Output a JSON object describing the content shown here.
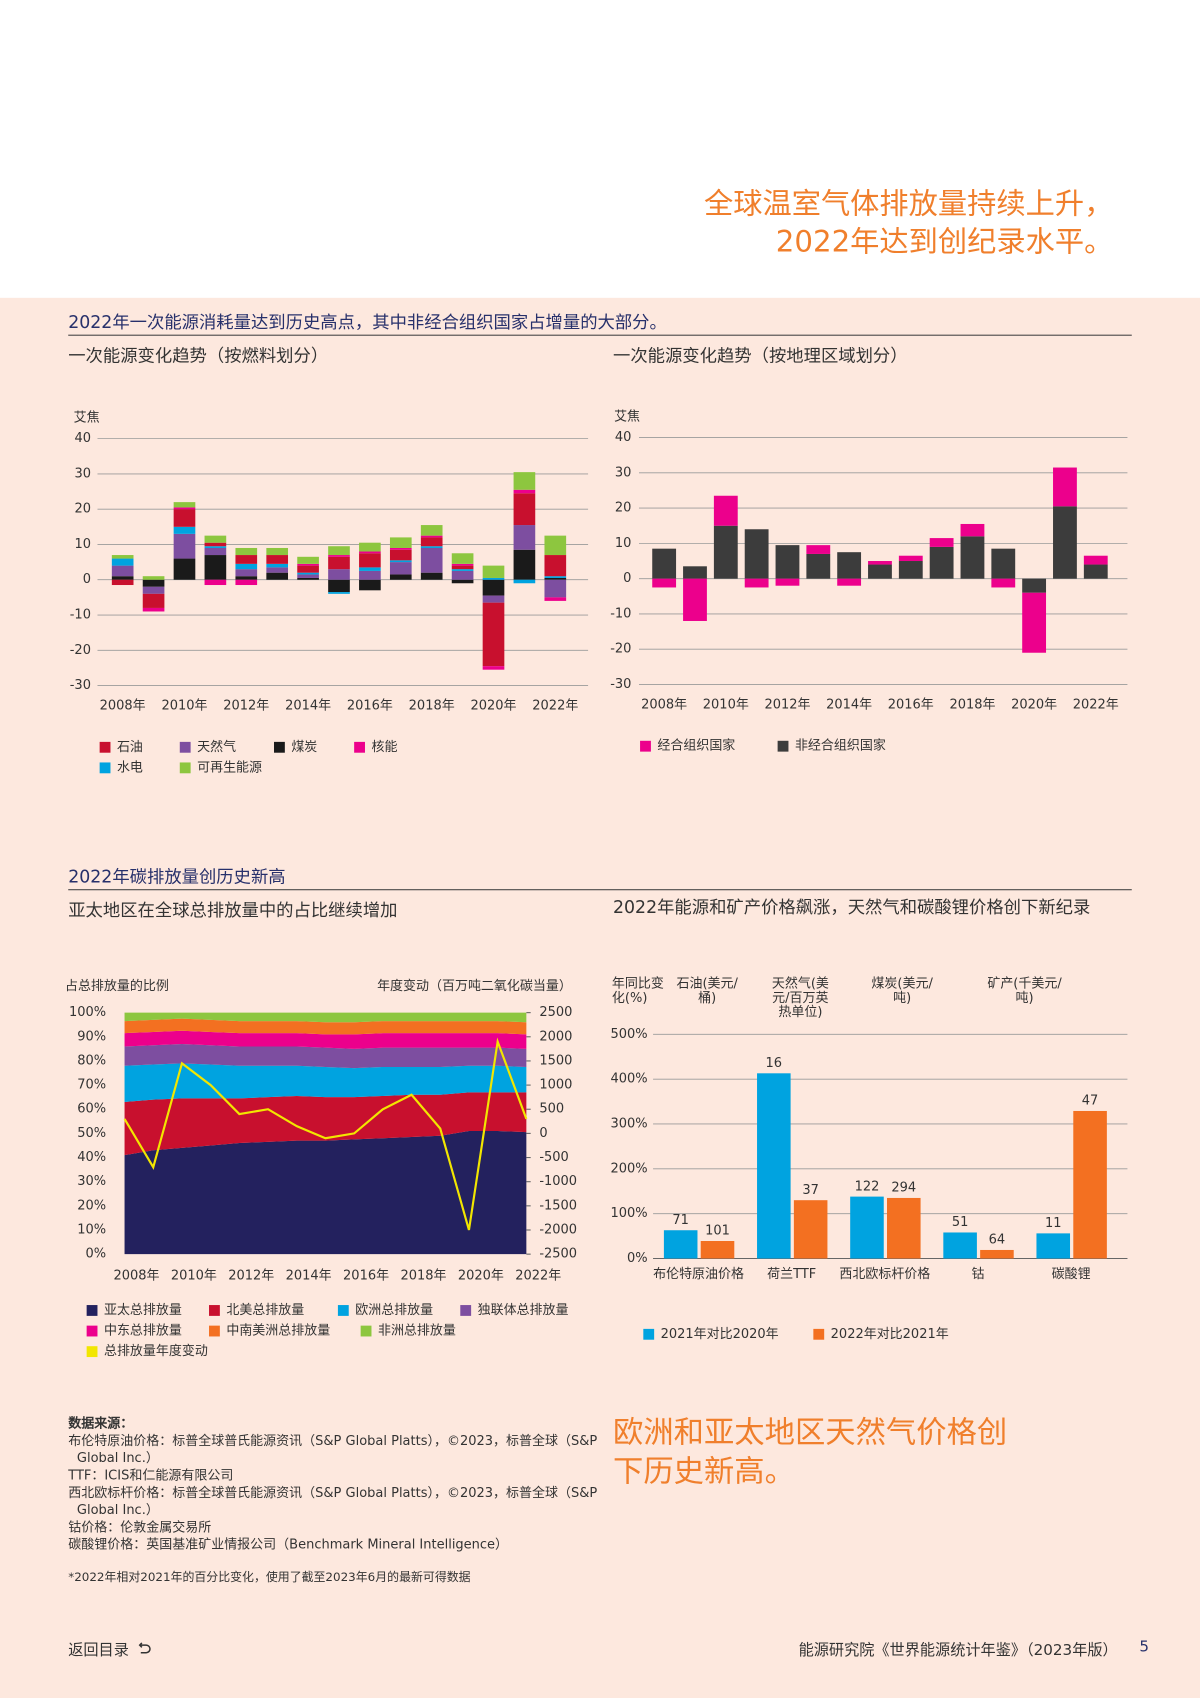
{
  "header": {
    "headline": [
      "全球温室气体排放量持续上升，",
      "2022年达到创纪录水平。"
    ]
  },
  "sections": [
    {
      "title": "2022年一次能源消耗量达到历史高点，其中非经合组织国家占增量的大部分。"
    },
    {
      "title": "2022年碳排放量创历史新高"
    }
  ],
  "chart_data": [
    {
      "type": "bar",
      "stacked": true,
      "title": "一次能源变化趋势（按燃料划分）",
      "y_label": "艾焦",
      "categories": [
        "2008年",
        null,
        "2010年",
        null,
        "2012年",
        null,
        "2014年",
        null,
        "2016年",
        null,
        "2018年",
        null,
        "2020年",
        null,
        "2022年"
      ],
      "series": [
        {
          "name": "石油",
          "color": "#c8102e",
          "values": [
            -1.5,
            -4,
            5,
            1,
            2.5,
            2.5,
            2,
            3.5,
            4,
            3,
            2.5,
            1,
            -18,
            9,
            6
          ]
        },
        {
          "name": "天然气",
          "color": "#7d4ea0",
          "values": [
            3,
            -2,
            7,
            2,
            2,
            1.5,
            1,
            3,
            2.5,
            3.5,
            7,
            2.5,
            -2,
            7,
            -5
          ]
        },
        {
          "name": "煤炭",
          "color": "#1a1a1a",
          "values": [
            1,
            -2,
            6,
            7,
            1,
            2,
            0.5,
            -3.5,
            -3,
            1.5,
            2,
            -1,
            -4.5,
            8.5,
            0.5
          ]
        },
        {
          "name": "核能",
          "color": "#ec008c",
          "values": [
            0,
            -1,
            0.5,
            -1.5,
            -1.5,
            0,
            0.5,
            0.5,
            0.5,
            0.5,
            0.5,
            0.5,
            -1,
            1,
            -1
          ]
        },
        {
          "name": "水电",
          "color": "#00a3e0",
          "values": [
            2,
            0,
            2,
            0.5,
            1.5,
            1,
            0.5,
            -0.5,
            1,
            0.5,
            0.5,
            0.5,
            0.5,
            -1,
            0.5
          ]
        },
        {
          "name": "可再生能源",
          "color": "#8dc63f",
          "values": [
            1,
            1,
            1.5,
            2,
            2,
            2,
            2,
            2.5,
            2.5,
            3,
            3,
            3,
            3.5,
            5,
            5.5
          ]
        }
      ],
      "ylim": [
        -30,
        40
      ],
      "yticks": [
        -30,
        -20,
        -10,
        0,
        10,
        20,
        30,
        40
      ],
      "grid": true
    },
    {
      "type": "bar",
      "stacked": true,
      "title": "一次能源变化趋势（按地理区域划分）",
      "y_label": "艾焦",
      "categories": [
        "2008年",
        null,
        "2010年",
        null,
        "2012年",
        null,
        "2014年",
        null,
        "2016年",
        null,
        "2018年",
        null,
        "2020年",
        null,
        "2022年"
      ],
      "series": [
        {
          "name": "经合组织国家",
          "color": "#ec008c",
          "values": [
            -2.5,
            -12,
            8.5,
            -2.5,
            -2,
            2.5,
            -2,
            1,
            1.5,
            2.5,
            3.5,
            -2.5,
            -17,
            11,
            2.5
          ]
        },
        {
          "name": "非经合组织国家",
          "color": "#3c3c3c",
          "values": [
            8.5,
            3.5,
            15,
            14,
            9.5,
            7,
            7.5,
            4,
            5,
            9,
            12,
            8.5,
            -4,
            20.5,
            4
          ]
        }
      ],
      "ylim": [
        -30,
        40
      ],
      "yticks": [
        -30,
        -20,
        -10,
        0,
        10,
        20,
        30,
        40
      ],
      "grid": true
    },
    {
      "type": "area",
      "stacked": true,
      "title": "亚太地区在全球总排放量中的占比继续增加",
      "y_label": "占总排放量的比例",
      "y2_label": "年度变动（百万吨二氧化碳当量）",
      "categories": [
        "2008年",
        null,
        "2010年",
        null,
        "2012年",
        null,
        "2014年",
        null,
        "2016年",
        null,
        "2018年",
        null,
        "2020年",
        null,
        "2022年"
      ],
      "series": [
        {
          "name": "亚太总排放量",
          "color": "#23215e",
          "values": [
            41,
            43,
            44,
            45,
            46,
            46.5,
            47,
            47,
            47.5,
            48,
            48.5,
            49,
            51,
            51,
            50.5
          ]
        },
        {
          "name": "北美总排放量",
          "color": "#c8102e",
          "values": [
            22,
            21,
            20.5,
            19.5,
            18.5,
            18.5,
            18.5,
            18,
            17.5,
            17.5,
            17.5,
            17,
            16,
            16,
            16.5
          ]
        },
        {
          "name": "欧洲总排放量",
          "color": "#00a3e0",
          "values": [
            15,
            14.5,
            14.5,
            14,
            13.5,
            13,
            12.5,
            12.5,
            12,
            12,
            11.5,
            11.5,
            11,
            11,
            10.5
          ]
        },
        {
          "name": "独联体总排放量",
          "color": "#7d4ea0",
          "values": [
            8,
            8,
            8,
            8,
            8,
            8,
            8,
            8,
            8,
            8,
            8,
            8,
            7.5,
            7.5,
            7.5
          ]
        },
        {
          "name": "中东总排放量",
          "color": "#ec008c",
          "values": [
            5.5,
            5.5,
            5.5,
            5.5,
            5.5,
            5.5,
            5.5,
            5.5,
            6,
            6,
            6,
            6,
            6,
            6,
            6
          ]
        },
        {
          "name": "中南美洲总排放量",
          "color": "#f37021",
          "values": [
            5,
            5,
            5,
            5,
            5,
            5,
            5,
            5,
            5,
            5,
            5,
            5,
            5,
            5,
            5
          ]
        },
        {
          "name": "非洲总排放量",
          "color": "#8dc63f",
          "values": [
            3.5,
            3,
            2.5,
            3,
            3.5,
            3.5,
            3.5,
            4,
            4,
            3.5,
            3.5,
            3.5,
            3.5,
            3.5,
            4
          ]
        },
        {
          "name": "总排放量年度变动",
          "color": "#f2e600",
          "axis": "y2",
          "values": [
            300,
            -700,
            1450,
            1000,
            400,
            500,
            150,
            -100,
            0,
            500,
            800,
            100,
            -2000,
            1900,
            300
          ]
        }
      ],
      "ylim": [
        0,
        100
      ],
      "yticks": [
        {
          "value": 0,
          "label": "0%"
        },
        {
          "value": 10,
          "label": "10%"
        },
        {
          "value": 20,
          "label": "20%"
        },
        {
          "value": 30,
          "label": "30%"
        },
        {
          "value": 40,
          "label": "40%"
        },
        {
          "value": 50,
          "label": "50%"
        },
        {
          "value": 60,
          "label": "60%"
        },
        {
          "value": 70,
          "label": "70%"
        },
        {
          "value": 80,
          "label": "80%"
        },
        {
          "value": 90,
          "label": "90%"
        },
        {
          "value": 100,
          "label": "100%"
        }
      ],
      "y2lim": [
        -2500,
        2500
      ],
      "y2ticks": [
        -2500,
        -2000,
        -1500,
        -1000,
        -500,
        0,
        500,
        1000,
        1500,
        2000,
        2500
      ],
      "grid": false
    },
    {
      "type": "bar",
      "stacked": false,
      "title": "2022年能源和矿产价格飙涨，天然气和碳酸锂价格创下新纪录",
      "y_label": "年同比变化(%)",
      "unit_headers": [
        "石油(美元/桶)",
        "天然气(美元/百万英热单位)",
        "煤炭(美元/吨)",
        "矿产(千美元/吨)"
      ],
      "categories": [
        "布伦特原油价格",
        "荷兰TTF",
        "西北欧标杆价格",
        "钴",
        "碳酸锂"
      ],
      "series": [
        {
          "name": "2021年对比2020年",
          "color": "#00a3e0",
          "values": [
            63,
            413,
            138,
            58,
            56
          ],
          "prices": [
            71,
            16,
            122,
            51,
            11
          ]
        },
        {
          "name": "2022年对比2021年",
          "color": "#f37021",
          "values": [
            39,
            130,
            135,
            19,
            329
          ],
          "prices": [
            101,
            37,
            294,
            64,
            47
          ]
        }
      ],
      "ylim": [
        0,
        500
      ],
      "yticks": [
        {
          "value": 0,
          "label": "0%"
        },
        {
          "value": 100,
          "label": "100%"
        },
        {
          "value": 200,
          "label": "200%"
        },
        {
          "value": 300,
          "label": "300%"
        },
        {
          "value": 400,
          "label": "400%"
        },
        {
          "value": 500,
          "label": "500%"
        }
      ],
      "grid": true
    }
  ],
  "callout": "欧洲和亚太地区天然气价格创下历史新高。",
  "sources": {
    "title": "数据来源：",
    "lines": [
      "布伦特原油价格：标普全球普氏能源资讯（S&P Global Platts），©2023，标普全球（S&P Global Inc.）",
      "TTF：ICIS和仁能源有限公司",
      "西北欧标杆价格：标普全球普氏能源资讯（S&P Global Platts），©2023，标普全球（S&P Global Inc.）",
      "钴价格：伦敦金属交易所",
      "碳酸锂价格：英国基准矿业情报公司（Benchmark Mineral Intelligence）"
    ],
    "note": "*2022年相对2021年的百分比变化，使用了截至2023年6月的最新可得数据"
  },
  "footer": {
    "back": "返回目录",
    "publication": "能源研究院《世界能源统计年鉴》（2023年版）",
    "page": 5
  }
}
